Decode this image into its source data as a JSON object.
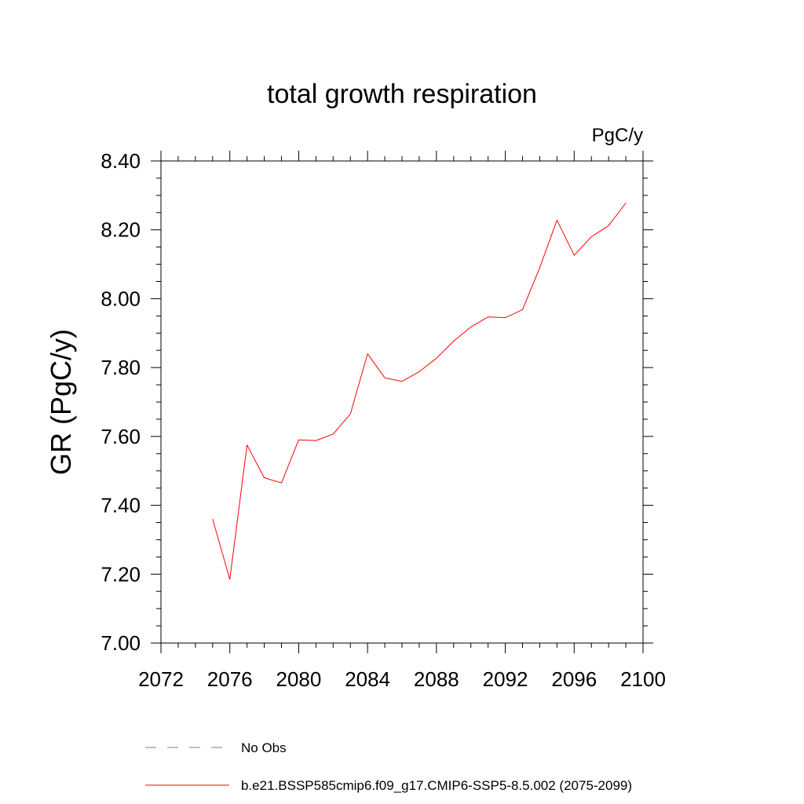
{
  "chart_data": {
    "type": "line",
    "title": "total growth respiration",
    "units_label": "PgC/y",
    "xlabel": "",
    "ylabel": "GR  (PgC/y)",
    "xlim": [
      2072,
      2100
    ],
    "ylim": [
      7.0,
      8.4
    ],
    "x_ticks": [
      2072,
      2076,
      2080,
      2084,
      2088,
      2092,
      2096,
      2100
    ],
    "y_ticks": [
      7.0,
      7.2,
      7.4,
      7.6,
      7.8,
      8.0,
      8.2,
      8.4
    ],
    "y_tick_labels": [
      "7.00",
      "7.20",
      "7.40",
      "7.60",
      "7.80",
      "8.00",
      "8.20",
      "8.40"
    ],
    "grid": false,
    "series": [
      {
        "name": "b.e21.BSSP585cmip6.f09_g17.CMIP6-SSP5-8.5.002 (2075-2099)",
        "color": "#ff0000",
        "style": "solid",
        "x": [
          2075,
          2076,
          2077,
          2078,
          2079,
          2080,
          2081,
          2082,
          2083,
          2084,
          2085,
          2086,
          2087,
          2088,
          2089,
          2090,
          2091,
          2092,
          2093,
          2094,
          2095,
          2096,
          2097,
          2098,
          2099
        ],
        "y": [
          7.36,
          7.185,
          7.575,
          7.48,
          7.465,
          7.59,
          7.588,
          7.607,
          7.665,
          7.84,
          7.77,
          7.76,
          7.788,
          7.827,
          7.877,
          7.918,
          7.947,
          7.945,
          7.968,
          8.09,
          8.228,
          8.126,
          8.18,
          8.212,
          8.278
        ]
      }
    ],
    "legend": [
      {
        "label": "No Obs",
        "color": "#7777cc",
        "style": "dashed"
      },
      {
        "label": "b.e21.BSSP585cmip6.f09_g17.CMIP6-SSP5-8.5.002 (2075-2099)",
        "color": "#ff0000",
        "style": "solid"
      }
    ]
  }
}
